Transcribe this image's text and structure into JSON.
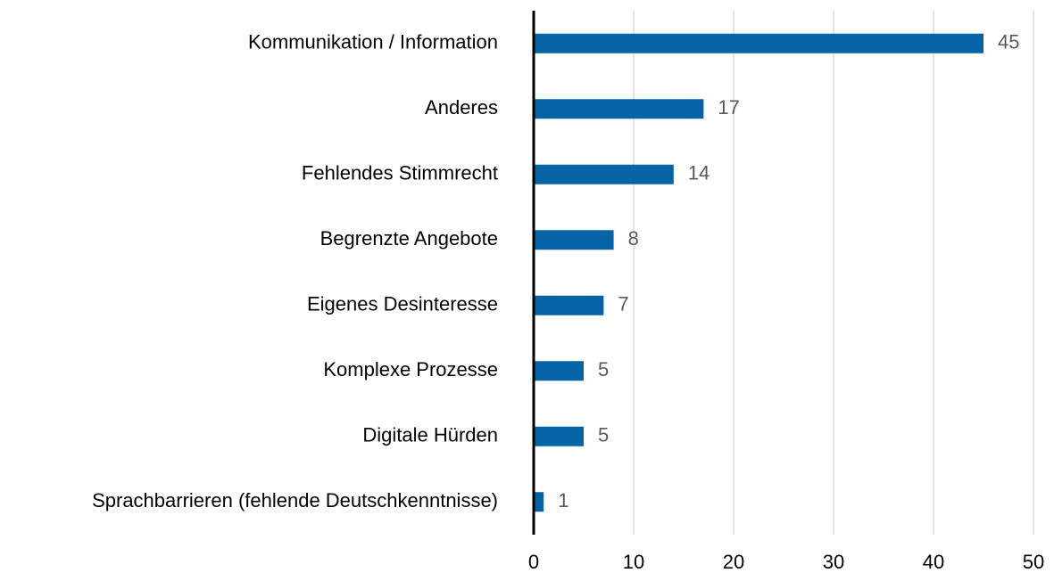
{
  "chart_data": {
    "type": "bar",
    "orientation": "horizontal",
    "categories": [
      "Kommunikation / Information",
      "Anderes",
      "Fehlendes Stimmrecht",
      "Begrenzte Angebote",
      "Eigenes Desinteresse",
      "Komplexe Prozesse",
      "Digitale Hürden",
      "Sprachbarrieren (fehlende Deutschkenntnisse)"
    ],
    "values": [
      45,
      17,
      14,
      8,
      7,
      5,
      5,
      1
    ],
    "color": "#0563a6",
    "xlim": [
      0,
      50
    ],
    "xticks": [
      0,
      10,
      20,
      30,
      40,
      50
    ],
    "grid": true
  }
}
